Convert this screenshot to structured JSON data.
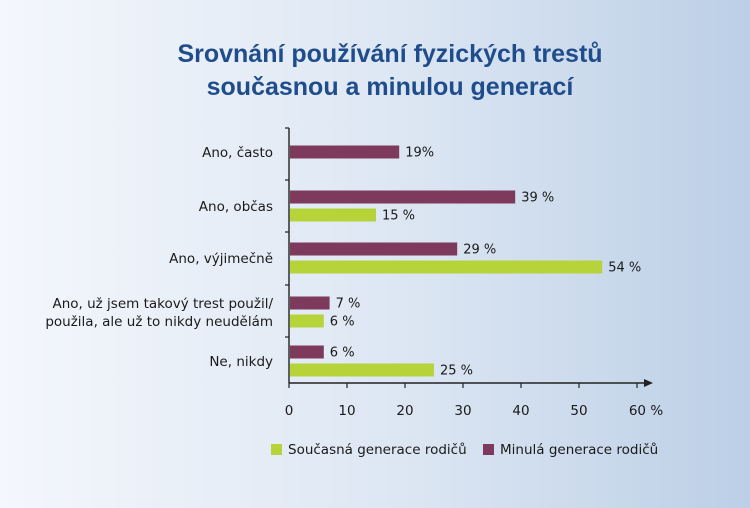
{
  "chart_data": {
    "type": "bar",
    "orientation": "horizontal",
    "title_lines": [
      "Srovnání používání fyzických trestů",
      "současnou a minulou generací"
    ],
    "categories": [
      [
        "Ano, často"
      ],
      [
        "Ano, občas"
      ],
      [
        "Ano, výjimečně"
      ],
      [
        "Ano, už jsem takový trest použil/",
        "použila, ale už to nikdy neudělám"
      ],
      [
        "Ne, nikdy"
      ]
    ],
    "series": [
      {
        "name": "Minulá generace rodičů",
        "color": "#7d3a5c",
        "values": [
          19,
          39,
          29,
          7,
          6
        ],
        "labels": [
          "19%",
          "39 %",
          "29 %",
          "7 %",
          "6 %"
        ]
      },
      {
        "name": "Současná generace rodičů",
        "color": "#b6d43a",
        "values": [
          null,
          15,
          54,
          6,
          25
        ],
        "labels": [
          null,
          "15 %",
          "54 %",
          "6 %",
          "25 %"
        ]
      }
    ],
    "legend_order": [
      1,
      0
    ],
    "xlim": [
      0,
      60
    ],
    "x_ticks": [
      {
        "value": 0,
        "label": "0"
      },
      {
        "value": 10,
        "label": "10"
      },
      {
        "value": 20,
        "label": "20"
      },
      {
        "value": 30,
        "label": "30"
      },
      {
        "value": 40,
        "label": "40"
      },
      {
        "value": 50,
        "label": "50"
      },
      {
        "value": 60,
        "label": "60 %"
      }
    ],
    "grid": false,
    "legend_position": "bottom-right"
  }
}
